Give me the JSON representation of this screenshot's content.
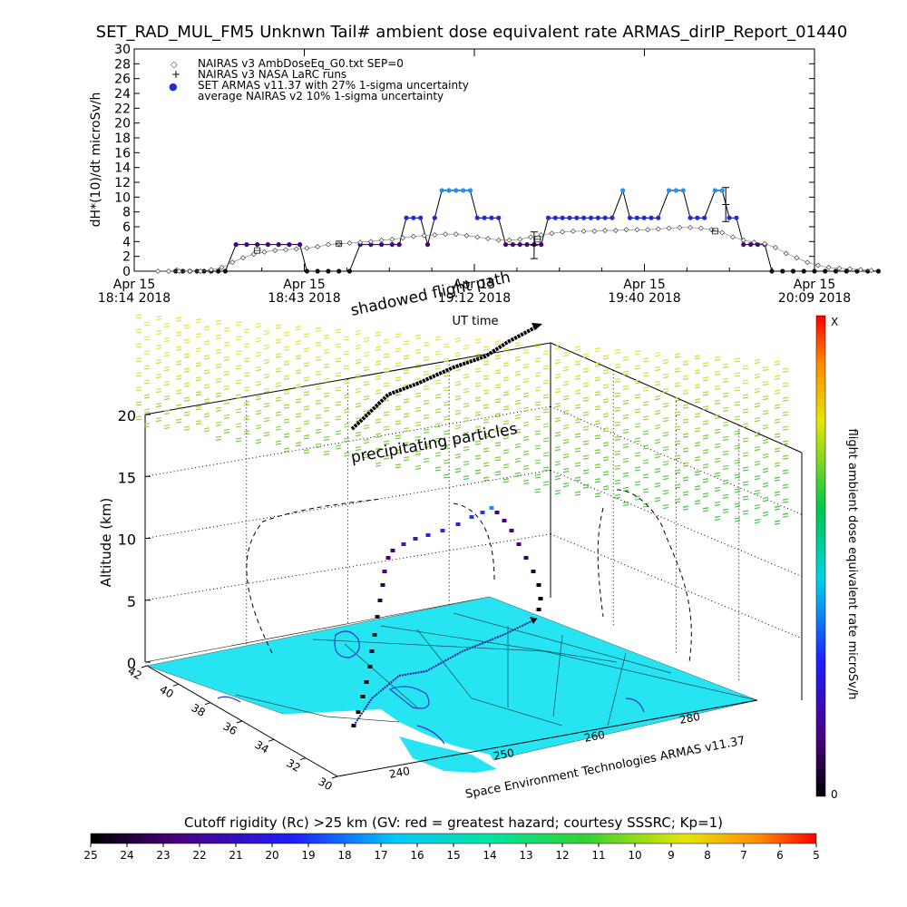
{
  "title": "SET_RAD_MUL_FM5 Unknwn Tail#  ambient dose equivalent rate ARMAS_dirIP_Report_01440",
  "footer_credit": "Space Environment Technologies ARMAS v11.37",
  "colors": {
    "nairas_v3": "#444444",
    "armas_low": "#4b0082",
    "armas_mid": "#1e2bd8",
    "armas_high": "#1e90ff",
    "map_fill": "#27e4f2",
    "altitude_path": "#000000"
  },
  "chart_data": [
    {
      "type": "line",
      "ylabel": "dH*(10)/dt microSv/h",
      "xlabel": "UT time",
      "ylim": [
        0,
        30
      ],
      "yticks": [
        "0",
        "2",
        "4",
        "6",
        "8",
        "10",
        "12",
        "14",
        "16",
        "18",
        "20",
        "22",
        "24",
        "26",
        "28",
        "30"
      ],
      "xticks": [
        {
          "date": "Apr 15",
          "time": "18:14 2018"
        },
        {
          "date": "Apr 15",
          "time": "18:43 2018"
        },
        {
          "date": "Apr 15",
          "time": "19:12 2018"
        },
        {
          "date": "Apr 15",
          "time": "19:40 2018"
        },
        {
          "date": "Apr 15",
          "time": "20:09 2018"
        }
      ],
      "legend": [
        {
          "symbol": "◇",
          "label": "NAIRAS v3 AmbDoseEq_G0.txt SEP=0"
        },
        {
          "symbol": "+",
          "label": "NAIRAS v3 NASA LaRC runs"
        },
        {
          "symbol": "●",
          "label": "SET ARMAS v11.37 with 27% 1-sigma uncertainty"
        },
        {
          "symbol": "",
          "label": "average NAIRAS v2 10% 1-sigma uncertainty"
        }
      ],
      "legend_position": "top-left",
      "series": [
        {
          "kind": "armas",
          "points": [
            [
              18.35,
              0
            ],
            [
              18.37,
              0
            ],
            [
              18.39,
              0
            ],
            [
              18.41,
              0
            ],
            [
              18.43,
              0
            ],
            [
              18.45,
              0
            ],
            [
              18.47,
              0
            ],
            [
              18.49,
              0
            ],
            [
              18.52,
              3.6
            ],
            [
              18.55,
              3.6
            ],
            [
              18.58,
              3.6
            ],
            [
              18.61,
              3.6
            ],
            [
              18.64,
              3.6
            ],
            [
              18.67,
              3.6
            ],
            [
              18.7,
              3.6
            ],
            [
              18.72,
              0
            ],
            [
              18.75,
              0
            ],
            [
              18.78,
              0
            ],
            [
              18.81,
              0
            ],
            [
              18.84,
              0
            ],
            [
              18.87,
              3.6
            ],
            [
              18.9,
              3.6
            ],
            [
              18.93,
              3.6
            ],
            [
              18.96,
              3.6
            ],
            [
              18.98,
              3.6
            ],
            [
              19.0,
              7.2
            ],
            [
              19.02,
              7.2
            ],
            [
              19.04,
              7.2
            ],
            [
              19.06,
              3.6
            ],
            [
              19.08,
              7.2
            ],
            [
              19.1,
              10.9
            ],
            [
              19.12,
              10.9
            ],
            [
              19.14,
              10.9
            ],
            [
              19.16,
              10.9
            ],
            [
              19.18,
              10.9
            ],
            [
              19.2,
              7.2
            ],
            [
              19.22,
              7.2
            ],
            [
              19.24,
              7.2
            ],
            [
              19.26,
              7.2
            ],
            [
              19.28,
              3.6
            ],
            [
              19.3,
              3.6
            ],
            [
              19.32,
              3.6
            ],
            [
              19.34,
              3.6
            ],
            [
              19.36,
              3.6
            ],
            [
              19.38,
              3.6
            ],
            [
              19.4,
              7.2
            ],
            [
              19.42,
              7.2
            ],
            [
              19.44,
              7.2
            ],
            [
              19.46,
              7.2
            ],
            [
              19.48,
              7.2
            ],
            [
              19.5,
              7.2
            ],
            [
              19.52,
              7.2
            ],
            [
              19.54,
              7.2
            ],
            [
              19.56,
              7.2
            ],
            [
              19.58,
              7.2
            ],
            [
              19.61,
              10.9
            ],
            [
              19.63,
              7.2
            ],
            [
              19.65,
              7.2
            ],
            [
              19.67,
              7.2
            ],
            [
              19.69,
              7.2
            ],
            [
              19.71,
              7.2
            ],
            [
              19.74,
              10.9
            ],
            [
              19.76,
              10.9
            ],
            [
              19.78,
              10.9
            ],
            [
              19.8,
              7.2
            ],
            [
              19.82,
              7.2
            ],
            [
              19.84,
              7.2
            ],
            [
              19.87,
              10.9
            ],
            [
              19.89,
              10.9
            ],
            [
              19.91,
              7.2
            ],
            [
              19.93,
              7.2
            ],
            [
              19.95,
              3.6
            ],
            [
              19.97,
              3.6
            ],
            [
              19.99,
              3.6
            ],
            [
              20.01,
              3.6
            ],
            [
              20.03,
              0
            ],
            [
              20.06,
              0
            ],
            [
              20.09,
              0
            ],
            [
              20.12,
              0
            ],
            [
              20.15,
              0
            ],
            [
              20.18,
              0
            ],
            [
              20.21,
              0
            ],
            [
              20.24,
              0
            ],
            [
              20.27,
              0
            ],
            [
              20.3,
              0
            ],
            [
              20.33,
              0
            ]
          ]
        },
        {
          "kind": "nairas_v3",
          "points": [
            [
              18.3,
              0
            ],
            [
              18.33,
              0
            ],
            [
              18.36,
              0
            ],
            [
              18.39,
              0
            ],
            [
              18.42,
              0
            ],
            [
              18.45,
              0.2
            ],
            [
              18.48,
              0.5
            ],
            [
              18.51,
              1.2
            ],
            [
              18.54,
              1.8
            ],
            [
              18.57,
              2.3
            ],
            [
              18.6,
              2.6
            ],
            [
              18.63,
              2.8
            ],
            [
              18.66,
              2.9
            ],
            [
              18.69,
              3.0
            ],
            [
              18.72,
              3.1
            ],
            [
              18.75,
              3.3
            ],
            [
              18.78,
              3.6
            ],
            [
              18.81,
              3.7
            ],
            [
              18.84,
              3.8
            ],
            [
              18.87,
              3.9
            ],
            [
              18.9,
              4.0
            ],
            [
              18.93,
              4.2
            ],
            [
              18.96,
              4.3
            ],
            [
              18.99,
              4.5
            ],
            [
              19.02,
              4.7
            ],
            [
              19.05,
              4.8
            ],
            [
              19.08,
              4.9
            ],
            [
              19.11,
              5.0
            ],
            [
              19.14,
              5.0
            ],
            [
              19.17,
              4.8
            ],
            [
              19.2,
              4.6
            ],
            [
              19.23,
              4.4
            ],
            [
              19.26,
              4.2
            ],
            [
              19.29,
              4.2
            ],
            [
              19.32,
              4.3
            ],
            [
              19.35,
              4.6
            ],
            [
              19.38,
              4.9
            ],
            [
              19.41,
              5.1
            ],
            [
              19.44,
              5.3
            ],
            [
              19.47,
              5.4
            ],
            [
              19.5,
              5.4
            ],
            [
              19.53,
              5.4
            ],
            [
              19.56,
              5.5
            ],
            [
              19.59,
              5.5
            ],
            [
              19.62,
              5.6
            ],
            [
              19.65,
              5.6
            ],
            [
              19.68,
              5.6
            ],
            [
              19.71,
              5.7
            ],
            [
              19.74,
              5.8
            ],
            [
              19.77,
              5.9
            ],
            [
              19.8,
              5.9
            ],
            [
              19.83,
              5.8
            ],
            [
              19.86,
              5.6
            ],
            [
              19.89,
              5.2
            ],
            [
              19.92,
              4.6
            ],
            [
              19.95,
              4.2
            ],
            [
              19.98,
              3.9
            ],
            [
              20.01,
              3.7
            ],
            [
              20.04,
              3.2
            ],
            [
              20.07,
              2.4
            ],
            [
              20.1,
              1.8
            ],
            [
              20.13,
              1.2
            ],
            [
              20.16,
              0.8
            ],
            [
              20.19,
              0.5
            ],
            [
              20.22,
              0.4
            ],
            [
              20.25,
              0.3
            ],
            [
              20.28,
              0.2
            ],
            [
              20.31,
              0.1
            ]
          ]
        },
        {
          "kind": "larc_runs",
          "points": [
            [
              18.58,
              2.8
            ],
            [
              18.81,
              3.7
            ],
            [
              19.37,
              4.3
            ],
            [
              19.87,
              5.4
            ]
          ],
          "errors": [
            [
              18.58,
              0.3
            ],
            [
              18.81,
              0.3
            ],
            [
              19.37,
              1.2
            ],
            [
              19.87,
              0.5
            ]
          ],
          "big_errors": [
            [
              19.36,
              3.5,
              1.8
            ],
            [
              19.9,
              9.0,
              2.3
            ]
          ]
        }
      ]
    },
    {
      "type": "scatter",
      "ylabel": "Altitude (km)",
      "ylim": [
        0,
        20
      ],
      "zticks": [
        "0",
        "5",
        "10",
        "15",
        "20"
      ],
      "lat_ticks": [
        "42",
        "40",
        "38",
        "36",
        "34",
        "32",
        "30"
      ],
      "lon_ticks": [
        "240",
        "250",
        "260",
        "280"
      ],
      "annotations": [
        "shadowed flight path",
        "precipitating particles"
      ],
      "colorbar_label": "flight ambient dose equivalent rate microSv/h",
      "colorbar_top": "X",
      "colorbar_bottom": "0"
    },
    {
      "type": "heatmap",
      "title": "Cutoff rigidity (Rc) >25 km (GV: red = greatest hazard; courtesy SSSRC; Kp=1)",
      "ticks": [
        "25",
        "24",
        "23",
        "22",
        "21",
        "20",
        "19",
        "18",
        "17",
        "16",
        "15",
        "14",
        "13",
        "12",
        "11",
        "10",
        "9",
        "8",
        "7",
        "6",
        "5"
      ]
    }
  ]
}
